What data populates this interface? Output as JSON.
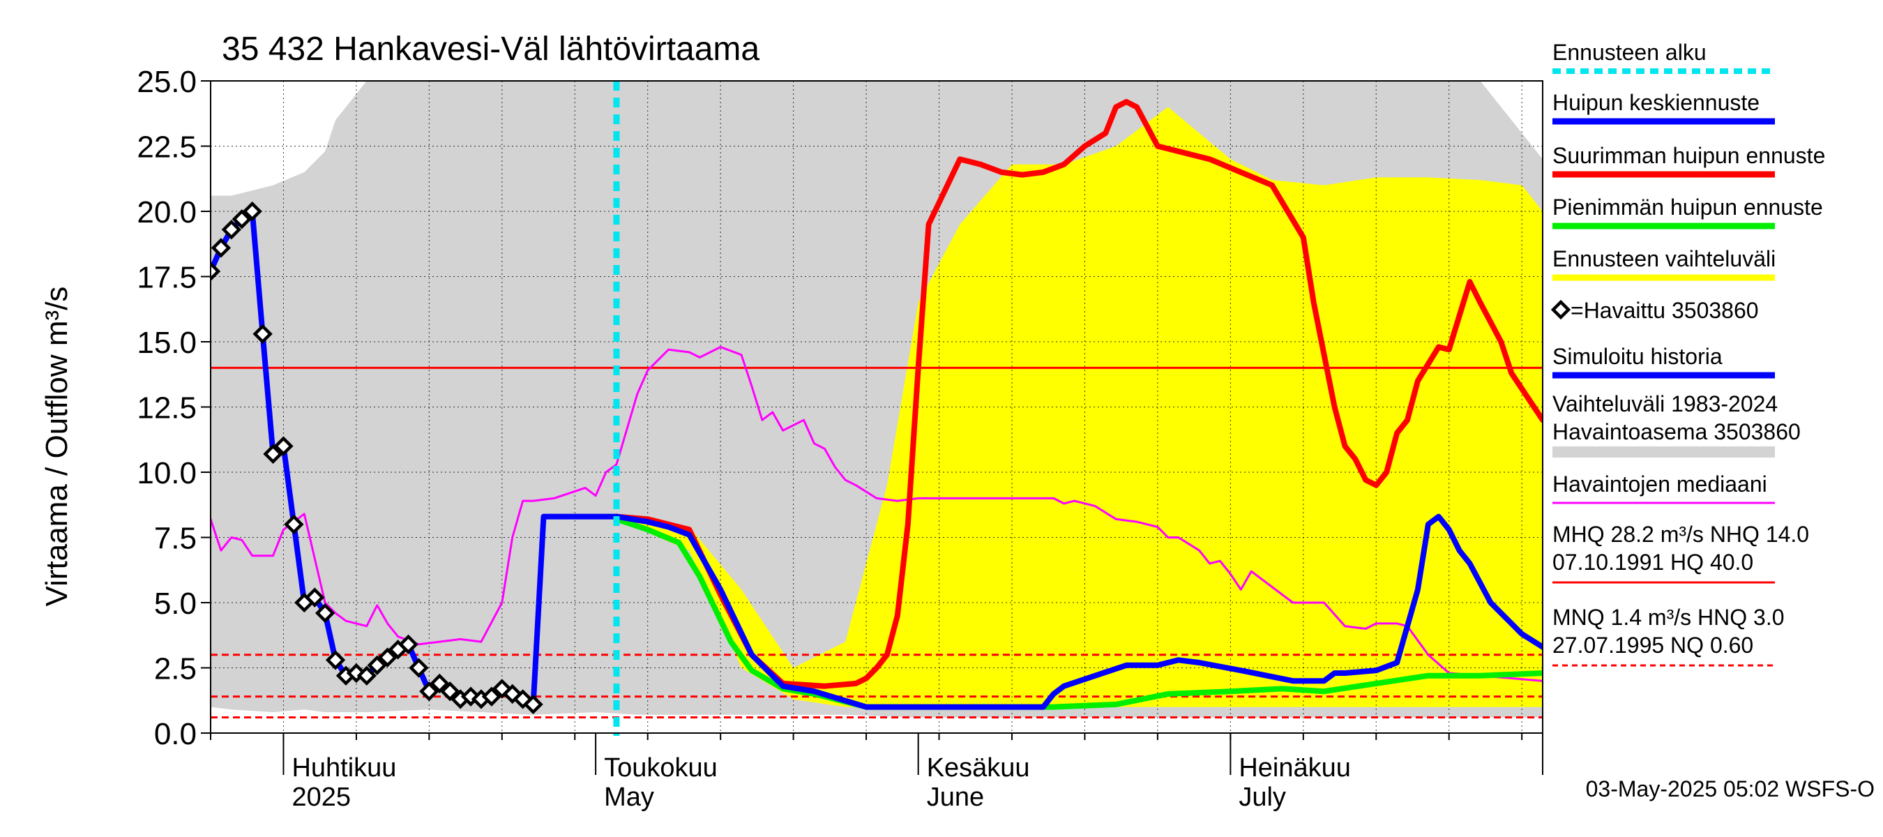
{
  "chart_data": {
    "type": "line",
    "title": "35 432 Hankavesi-Väl lähtövirtaama",
    "ylabel": "Virtaama / Outflow    m³/s",
    "ylim": [
      0,
      25
    ],
    "yticks": [
      0,
      2.5,
      5,
      7.5,
      10,
      12.5,
      15,
      17.5,
      20,
      22.5,
      25
    ],
    "ytick_labels": [
      "0.0",
      "2.5",
      "5.0",
      "7.5",
      "10.0",
      "12.5",
      "15.0",
      "17.5",
      "20.0",
      "22.5",
      "25.0"
    ],
    "x_start": "2025-03-25",
    "xlim": [
      "2025-03-25",
      "2025-07-31"
    ],
    "month_labels": [
      {
        "date": "2025-04-01",
        "fi": "Huhtikuu",
        "en": "2025"
      },
      {
        "date": "2025-05-01",
        "fi": "Toukokuu",
        "en": "May"
      },
      {
        "date": "2025-06-01",
        "fi": "Kesäkuu",
        "en": "June"
      },
      {
        "date": "2025-07-01",
        "fi": "Heinäkuu",
        "en": "July"
      }
    ],
    "forecast_start": "2025-05-03",
    "grid": true,
    "legend_position": "right",
    "legend": [
      {
        "label": "Ennusteen alku",
        "color": "#00e5ee",
        "style": "dotted"
      },
      {
        "label": "Huipun keskiennuste",
        "color": "#0000ff",
        "style": "solid"
      },
      {
        "label": "Suurimman huipun ennuste",
        "color": "#ff0000",
        "style": "solid"
      },
      {
        "label": "Pienimmän huipun ennuste",
        "color": "#00ee00",
        "style": "solid"
      },
      {
        "label": "Ennusteen vaihteluväli",
        "color": "#ffff00",
        "style": "solid"
      },
      {
        "label": "=Havaittu 3503860",
        "color": "#000000",
        "style": "marker"
      },
      {
        "label": "Simuloitu historia",
        "color": "#0000ff",
        "style": "solid"
      },
      {
        "label": "Vaihteluväli 1983-2024",
        "label2": " Havaintoasema 3503860",
        "color": "#d3d3d3",
        "style": "band"
      },
      {
        "label": "Havaintojen mediaani",
        "color": "#ff00ff",
        "style": "thin"
      },
      {
        "label": "MHQ 28.2 m³/s NHQ 14.0",
        "label2": "07.10.1991 HQ 40.0",
        "color": "#ff0000",
        "style": "thin"
      },
      {
        "label": "MNQ  1.4 m³/s HNQ  3.0",
        "label2": "27.07.1995 NQ 0.60",
        "color": "#ff0000",
        "style": "dashed"
      }
    ],
    "reference_lines": [
      {
        "name": "NHQ",
        "value": 14.0,
        "style": "solid"
      },
      {
        "name": "HNQ",
        "value": 3.0,
        "style": "dashed"
      },
      {
        "name": "MNQ",
        "value": 1.4,
        "style": "dashed"
      },
      {
        "name": "NQ",
        "value": 0.6,
        "style": "dashed"
      }
    ],
    "history_band": {
      "name": "Vaihteluväli 1983-2024",
      "x": [
        "2025-03-25",
        "2025-03-27",
        "2025-03-31",
        "2025-04-03",
        "2025-04-05",
        "2025-04-06",
        "2025-04-09",
        "2025-04-15",
        "2025-04-20",
        "2025-04-25",
        "2025-05-01",
        "2025-05-05",
        "2025-05-10",
        "2025-05-15",
        "2025-05-20",
        "2025-05-25",
        "2025-06-01",
        "2025-06-05",
        "2025-06-10",
        "2025-06-15",
        "2025-06-20",
        "2025-06-25",
        "2025-07-01",
        "2025-07-05",
        "2025-07-10",
        "2025-07-15",
        "2025-07-20",
        "2025-07-25",
        "2025-07-31"
      ],
      "high": [
        20.6,
        20.6,
        21.0,
        21.5,
        22.3,
        23.5,
        25.0,
        25.0,
        25.0,
        25.0,
        25.0,
        25.0,
        25.0,
        25.0,
        25.0,
        25.0,
        25.0,
        25.0,
        25.0,
        25.0,
        25.0,
        25.0,
        25.0,
        25.0,
        25.0,
        25.0,
        25.0,
        25.0,
        22.0
      ],
      "low": [
        1.0,
        0.9,
        0.8,
        0.9,
        0.8,
        0.8,
        0.8,
        0.9,
        0.8,
        0.7,
        0.8,
        0.7,
        0.7,
        0.7,
        0.7,
        0.7,
        0.6,
        0.6,
        0.6,
        0.6,
        0.6,
        0.6,
        0.6,
        0.6,
        0.6,
        0.6,
        0.6,
        0.6,
        0.6
      ]
    },
    "forecast_band": {
      "name": "Ennusteen vaihteluväli",
      "x": [
        "2025-05-03",
        "2025-05-10",
        "2025-05-15",
        "2025-05-20",
        "2025-05-25",
        "2025-05-29",
        "2025-06-01",
        "2025-06-05",
        "2025-06-10",
        "2025-06-15",
        "2025-06-20",
        "2025-06-25",
        "2025-07-01",
        "2025-07-05",
        "2025-07-10",
        "2025-07-15",
        "2025-07-20",
        "2025-07-25",
        "2025-07-29",
        "2025-07-31"
      ],
      "high": [
        8.3,
        7.9,
        5.5,
        2.5,
        3.5,
        9.5,
        16.5,
        19.5,
        21.8,
        21.8,
        22.5,
        24.0,
        22.0,
        21.2,
        21.0,
        21.3,
        21.3,
        21.2,
        21.0,
        20.0
      ],
      "low": [
        8.2,
        7.0,
        2.5,
        1.3,
        1.0,
        1.0,
        1.0,
        1.0,
        1.0,
        1.0,
        1.0,
        1.0,
        1.0,
        1.0,
        1.0,
        1.0,
        1.0,
        1.0,
        1.0,
        1.0
      ]
    },
    "series": [
      {
        "name": "Havaintojen mediaani",
        "color": "#ff00ff",
        "x": [
          "2025-03-25",
          "2025-03-26",
          "2025-03-27",
          "2025-03-28",
          "2025-03-29",
          "2025-03-31",
          "2025-04-01",
          "2025-04-03",
          "2025-04-05",
          "2025-04-06",
          "2025-04-07",
          "2025-04-08",
          "2025-04-09",
          "2025-04-10",
          "2025-04-11",
          "2025-04-12",
          "2025-04-14",
          "2025-04-16",
          "2025-04-18",
          "2025-04-20",
          "2025-04-22",
          "2025-04-23",
          "2025-04-24",
          "2025-04-25",
          "2025-04-27",
          "2025-04-30",
          "2025-05-01",
          "2025-05-02",
          "2025-05-03",
          "2025-05-05",
          "2025-05-06",
          "2025-05-08",
          "2025-05-10",
          "2025-05-11",
          "2025-05-13",
          "2025-05-15",
          "2025-05-16",
          "2025-05-17",
          "2025-05-18",
          "2025-05-19",
          "2025-05-21",
          "2025-05-22",
          "2025-05-23",
          "2025-05-24",
          "2025-05-25",
          "2025-05-26",
          "2025-05-28",
          "2025-05-30",
          "2025-06-01",
          "2025-06-10",
          "2025-06-14",
          "2025-06-15",
          "2025-06-16",
          "2025-06-18",
          "2025-06-20",
          "2025-06-22",
          "2025-06-24",
          "2025-06-25",
          "2025-06-26",
          "2025-06-28",
          "2025-06-29",
          "2025-06-30",
          "2025-07-01",
          "2025-07-02",
          "2025-07-03",
          "2025-07-05",
          "2025-07-07",
          "2025-07-09",
          "2025-07-10",
          "2025-07-12",
          "2025-07-14",
          "2025-07-15",
          "2025-07-17",
          "2025-07-18",
          "2025-07-20",
          "2025-07-22",
          "2025-07-25",
          "2025-07-31"
        ],
        "values": [
          8.2,
          7.0,
          7.5,
          7.4,
          6.8,
          6.8,
          7.8,
          8.4,
          5.0,
          4.6,
          4.3,
          4.2,
          4.1,
          4.9,
          4.2,
          3.7,
          3.4,
          3.5,
          3.6,
          3.5,
          5.0,
          7.5,
          8.9,
          8.9,
          9.0,
          9.4,
          9.1,
          10.0,
          10.3,
          13.0,
          13.9,
          14.7,
          14.6,
          14.4,
          14.8,
          14.5,
          13.3,
          12.0,
          12.3,
          11.6,
          12.0,
          11.1,
          10.9,
          10.2,
          9.7,
          9.5,
          9.0,
          8.9,
          9.0,
          9.0,
          9.0,
          8.8,
          8.9,
          8.7,
          8.2,
          8.1,
          7.9,
          7.5,
          7.5,
          7.0,
          6.5,
          6.6,
          6.1,
          5.5,
          6.2,
          5.6,
          5.0,
          5.0,
          5.0,
          4.1,
          4.0,
          4.2,
          4.2,
          4.1,
          3.0,
          2.3,
          2.2,
          2.0
        ]
      },
      {
        "name": "Suurimman huipun ennuste",
        "color": "#ff0000",
        "x": [
          "2025-05-03",
          "2025-05-06",
          "2025-05-08",
          "2025-05-10",
          "2025-05-13",
          "2025-05-16",
          "2025-05-19",
          "2025-05-23",
          "2025-05-26",
          "2025-05-27",
          "2025-05-28",
          "2025-05-29",
          "2025-05-30",
          "2025-05-31",
          "2025-06-01",
          "2025-06-02",
          "2025-06-05",
          "2025-06-07",
          "2025-06-09",
          "2025-06-11",
          "2025-06-13",
          "2025-06-15",
          "2025-06-17",
          "2025-06-19",
          "2025-06-20",
          "2025-06-21",
          "2025-06-22",
          "2025-06-24",
          "2025-06-26",
          "2025-06-29",
          "2025-07-02",
          "2025-07-05",
          "2025-07-08",
          "2025-07-09",
          "2025-07-10",
          "2025-07-11",
          "2025-07-12",
          "2025-07-13",
          "2025-07-14",
          "2025-07-15",
          "2025-07-16",
          "2025-07-17",
          "2025-07-18",
          "2025-07-19",
          "2025-07-21",
          "2025-07-22",
          "2025-07-23",
          "2025-07-24",
          "2025-07-25",
          "2025-07-27",
          "2025-07-28",
          "2025-07-31"
        ],
        "values": [
          8.3,
          8.2,
          8.0,
          7.8,
          5.3,
          3.0,
          1.9,
          1.8,
          1.9,
          2.1,
          2.5,
          3.0,
          4.5,
          8.0,
          14.0,
          19.5,
          22.0,
          21.8,
          21.5,
          21.4,
          21.5,
          21.8,
          22.5,
          23.0,
          24.0,
          24.2,
          24.0,
          22.5,
          22.3,
          22.0,
          21.5,
          21.0,
          19.0,
          16.5,
          14.5,
          12.5,
          11.0,
          10.5,
          9.7,
          9.5,
          10.0,
          11.5,
          12.0,
          13.5,
          14.8,
          14.7,
          16.0,
          17.3,
          16.5,
          15.0,
          13.8,
          12.0
        ]
      },
      {
        "name": "Pienimmän huipun ennuste",
        "color": "#00ee00",
        "x": [
          "2025-05-03",
          "2025-05-06",
          "2025-05-09",
          "2025-05-11",
          "2025-05-14",
          "2025-05-16",
          "2025-05-19",
          "2025-05-22",
          "2025-05-27",
          "2025-06-14",
          "2025-06-20",
          "2025-06-25",
          "2025-07-01",
          "2025-07-06",
          "2025-07-10",
          "2025-07-15",
          "2025-07-20",
          "2025-07-25",
          "2025-07-31"
        ],
        "values": [
          8.2,
          7.8,
          7.3,
          6.0,
          3.5,
          2.4,
          1.7,
          1.5,
          1.0,
          1.0,
          1.1,
          1.5,
          1.6,
          1.7,
          1.6,
          1.9,
          2.2,
          2.2,
          2.3
        ]
      },
      {
        "name": "Huipun keskiennuste",
        "color": "#0000ff",
        "x": [
          "2025-05-03",
          "2025-05-06",
          "2025-05-08",
          "2025-05-10",
          "2025-05-13",
          "2025-05-16",
          "2025-05-19",
          "2025-05-22",
          "2025-05-27",
          "2025-06-13",
          "2025-06-14",
          "2025-06-15",
          "2025-06-18",
          "2025-06-21",
          "2025-06-24",
          "2025-06-26",
          "2025-06-28",
          "2025-07-02",
          "2025-07-07",
          "2025-07-10",
          "2025-07-11",
          "2025-07-12",
          "2025-07-15",
          "2025-07-17",
          "2025-07-19",
          "2025-07-20",
          "2025-07-21",
          "2025-07-22",
          "2025-07-23",
          "2025-07-24",
          "2025-07-26",
          "2025-07-29",
          "2025-07-31"
        ],
        "values": [
          8.3,
          8.1,
          7.9,
          7.6,
          5.5,
          3.0,
          1.8,
          1.6,
          1.0,
          1.0,
          1.5,
          1.8,
          2.2,
          2.6,
          2.6,
          2.8,
          2.7,
          2.4,
          2.0,
          2.0,
          2.3,
          2.3,
          2.4,
          2.7,
          5.5,
          8.0,
          8.3,
          7.8,
          7.0,
          6.5,
          5.0,
          3.8,
          3.3
        ]
      },
      {
        "name": "Simuloitu historia",
        "color": "#0000ff",
        "x": [
          "2025-03-25",
          "2025-03-26",
          "2025-03-27",
          "2025-03-28",
          "2025-03-29",
          "2025-03-30",
          "2025-03-31",
          "2025-04-01",
          "2025-04-02",
          "2025-04-03",
          "2025-04-04",
          "2025-04-05",
          "2025-04-06",
          "2025-04-07",
          "2025-04-08",
          "2025-04-09",
          "2025-04-10",
          "2025-04-11",
          "2025-04-12",
          "2025-04-13",
          "2025-04-14",
          "2025-04-15",
          "2025-04-16",
          "2025-04-17",
          "2025-04-18",
          "2025-04-19",
          "2025-04-20",
          "2025-04-21",
          "2025-04-22",
          "2025-04-23",
          "2025-04-24",
          "2025-04-25",
          "2025-04-26",
          "2025-04-27",
          "2025-04-28",
          "2025-04-29",
          "2025-04-30",
          "2025-05-01",
          "2025-05-02",
          "2025-05-03"
        ],
        "values": [
          17.7,
          18.6,
          19.3,
          19.7,
          20.0,
          15.3,
          10.7,
          11.0,
          8.0,
          5.0,
          5.2,
          4.6,
          2.8,
          2.2,
          2.3,
          2.2,
          2.6,
          2.9,
          3.2,
          3.4,
          2.5,
          1.6,
          1.9,
          1.6,
          1.3,
          1.4,
          1.3,
          1.4,
          1.7,
          1.5,
          1.3,
          1.1,
          8.3,
          8.3,
          8.3,
          8.3,
          8.3,
          8.3,
          8.3,
          8.3
        ]
      }
    ],
    "observed": {
      "name": "=Havaittu 3503860",
      "x": [
        "2025-03-25",
        "2025-03-26",
        "2025-03-27",
        "2025-03-28",
        "2025-03-29",
        "2025-03-30",
        "2025-03-31",
        "2025-04-01",
        "2025-04-02",
        "2025-04-03",
        "2025-04-04",
        "2025-04-05",
        "2025-04-06",
        "2025-04-07",
        "2025-04-08",
        "2025-04-09",
        "2025-04-10",
        "2025-04-11",
        "2025-04-12",
        "2025-04-13",
        "2025-04-14",
        "2025-04-15",
        "2025-04-16",
        "2025-04-17",
        "2025-04-18",
        "2025-04-19",
        "2025-04-20",
        "2025-04-21",
        "2025-04-22",
        "2025-04-23",
        "2025-04-24",
        "2025-04-25"
      ],
      "values": [
        17.7,
        18.6,
        19.3,
        19.7,
        20.0,
        15.3,
        10.7,
        11.0,
        8.0,
        5.0,
        5.2,
        4.6,
        2.8,
        2.2,
        2.3,
        2.2,
        2.6,
        2.9,
        3.2,
        3.4,
        2.5,
        1.6,
        1.9,
        1.6,
        1.3,
        1.4,
        1.3,
        1.4,
        1.7,
        1.5,
        1.3,
        1.1
      ]
    },
    "footer": "03-May-2025 05:02 WSFS-O"
  }
}
